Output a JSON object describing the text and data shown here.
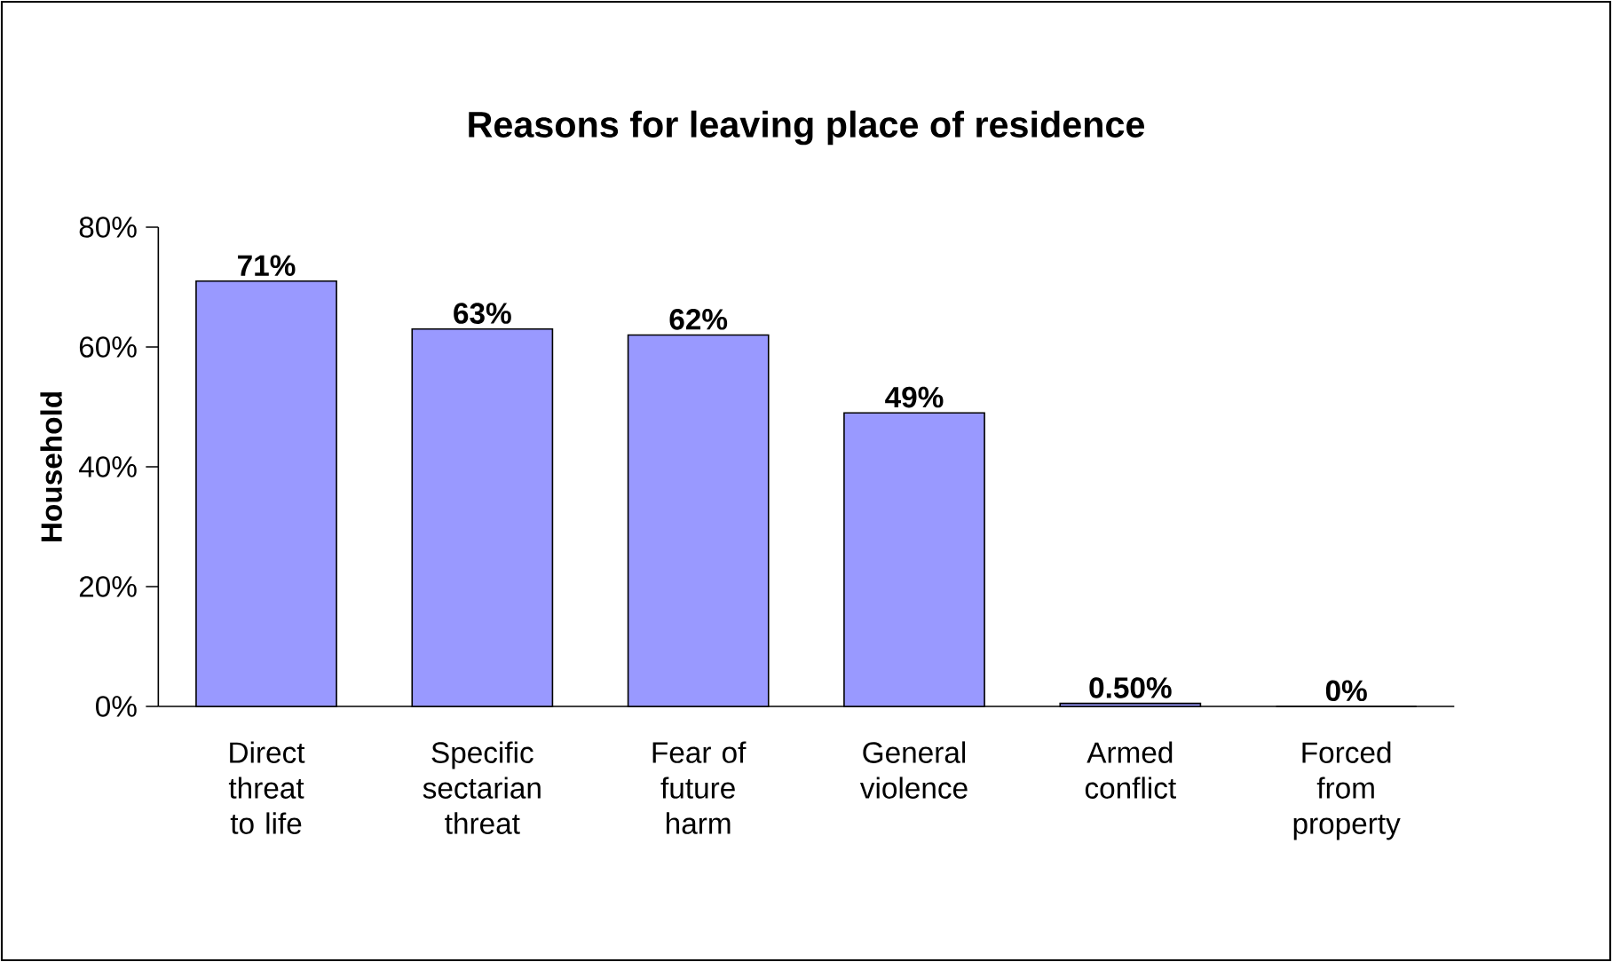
{
  "chart_data": {
    "type": "bar",
    "title": "Reasons for leaving place of residence",
    "ylabel": "Household",
    "categories": [
      "Direct threat to life",
      "Specific sectarian threat",
      "Fear of future harm",
      "General violence",
      "Armed conflict",
      "Forced from property"
    ],
    "values": [
      71,
      63,
      62,
      49,
      0.5,
      0
    ],
    "value_labels": [
      "71%",
      "63%",
      "62%",
      "49%",
      "0.50%",
      "0%"
    ],
    "color": "#9999ff",
    "ylim": [
      0,
      80
    ],
    "yticks": [
      {
        "value": 0,
        "label": "0%"
      },
      {
        "value": 20,
        "label": "20%"
      },
      {
        "value": 40,
        "label": "40%"
      },
      {
        "value": 60,
        "label": "60%"
      },
      {
        "value": 80,
        "label": "80%"
      }
    ]
  }
}
